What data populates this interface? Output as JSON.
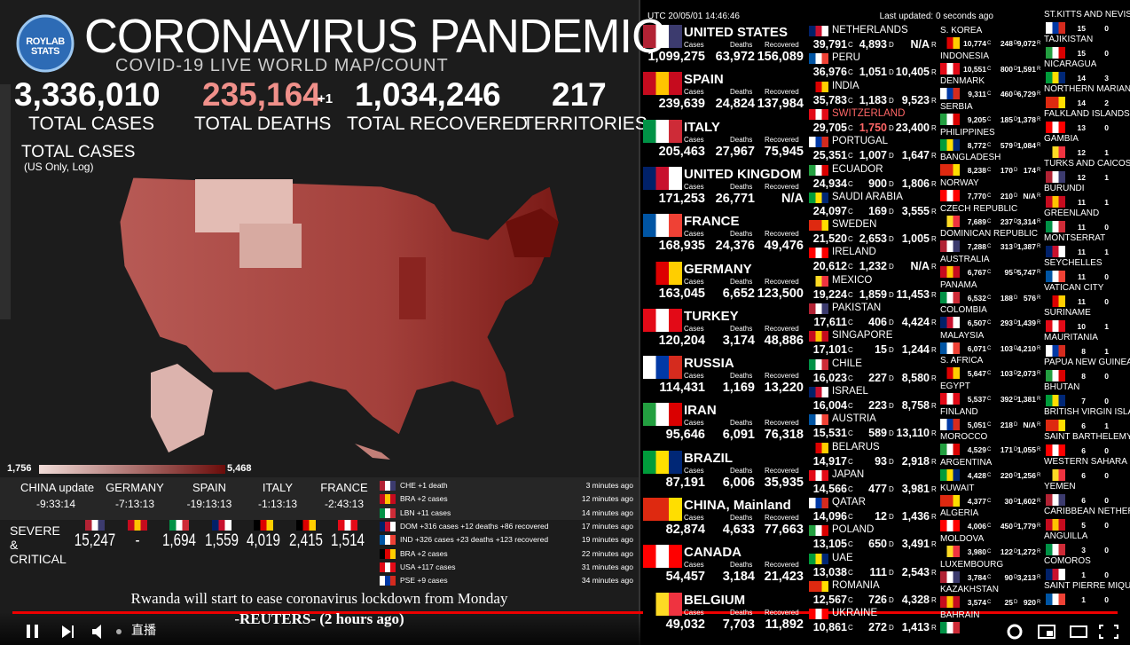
{
  "header": {
    "logo": "ROYLAB STATS",
    "title": "CORONAVIRUS PANDEMIC",
    "subtitle": "COVID-19 LIVE WORLD MAP/COUNT"
  },
  "stats": [
    {
      "value": "3,336,010",
      "label": "TOTAL CASES"
    },
    {
      "value": "235,164",
      "extra": "+1",
      "label": "TOTAL DEATHS"
    },
    {
      "value": "1,034,246",
      "label": "TOTAL RECOVERED"
    },
    {
      "value": "217",
      "label": "TERRITORIES"
    }
  ],
  "map": {
    "title": "TOTAL CASES",
    "note": "(US Only, Log)",
    "legend_min": "1,756",
    "legend_max": "5,468"
  },
  "updates": [
    {
      "country": "CHINA update",
      "time": "-9:33:14"
    },
    {
      "country": "GERMANY",
      "time": "-7:13:13"
    },
    {
      "country": "SPAIN",
      "time": "-19:13:13"
    },
    {
      "country": "ITALY",
      "time": "-1:13:13"
    },
    {
      "country": "FRANCE",
      "time": "-2:43:13"
    }
  ],
  "severe": {
    "label": "SEVERE & CRITICAL",
    "values": [
      "15,247",
      "-",
      "1,694",
      "1,559",
      "4,019",
      "2,415",
      "1,514"
    ]
  },
  "feed": [
    {
      "text": "CHE +1 death",
      "time": "3 minutes ago"
    },
    {
      "text": "BRA +2 cases",
      "time": "12 minutes ago"
    },
    {
      "text": "LBN +11 cases",
      "time": "14 minutes ago"
    },
    {
      "text": "DOM +316 cases +12 deaths +86 recovered",
      "time": "17 minutes ago"
    },
    {
      "text": "IND +326 cases +23 deaths +123 recovered",
      "time": "19 minutes ago"
    },
    {
      "text": "BRA +2 cases",
      "time": "22 minutes ago"
    },
    {
      "text": "USA +117 cases",
      "time": "31 minutes ago"
    },
    {
      "text": "PSE +9 cases",
      "time": "34 minutes ago"
    }
  ],
  "news": {
    "headline": "Rwanda will start to ease coronavirus lockdown from Monday",
    "source": "-REUTERS- (2 hours ago)"
  },
  "board": {
    "utc": "UTC 20/05/01 14:46:46",
    "updated": "Last updated: 0 seconds ago",
    "column_labels": [
      "Cases",
      "Deaths",
      "Recovered"
    ],
    "suffixes": [
      "C",
      "D",
      "R"
    ],
    "major": [
      [
        "UNITED STATES",
        "1,099,275",
        "63,972",
        "156,089"
      ],
      [
        "SPAIN",
        "239,639",
        "24,824",
        "137,984"
      ],
      [
        "ITALY",
        "205,463",
        "27,967",
        "75,945"
      ],
      [
        "UNITED KINGDOM",
        "171,253",
        "26,771",
        "N/A"
      ],
      [
        "FRANCE",
        "168,935",
        "24,376",
        "49,476"
      ],
      [
        "GERMANY",
        "163,045",
        "6,652",
        "123,500"
      ],
      [
        "TURKEY",
        "120,204",
        "3,174",
        "48,886"
      ],
      [
        "RUSSIA",
        "114,431",
        "1,169",
        "13,220"
      ],
      [
        "IRAN",
        "95,646",
        "6,091",
        "76,318"
      ],
      [
        "BRAZIL",
        "87,191",
        "6,006",
        "35,935"
      ],
      [
        "CHINA, Mainland",
        "82,874",
        "4,633",
        "77,663"
      ],
      [
        "CANADA",
        "54,457",
        "3,184",
        "21,423"
      ],
      [
        "BELGIUM",
        "49,032",
        "7,703",
        "11,892"
      ]
    ],
    "mid": [
      [
        "NETHERLANDS",
        "39,791",
        "4,893",
        "N/A"
      ],
      [
        "PERU",
        "36,976",
        "1,051",
        "10,405"
      ],
      [
        "INDIA",
        "35,783",
        "1,183",
        "9,523"
      ],
      [
        "SWITZERLAND",
        "29,705",
        "1,750",
        "23,400"
      ],
      [
        "PORTUGAL",
        "25,351",
        "1,007",
        "1,647"
      ],
      [
        "ECUADOR",
        "24,934",
        "900",
        "1,806"
      ],
      [
        "SAUDI ARABIA",
        "24,097",
        "169",
        "3,555"
      ],
      [
        "SWEDEN",
        "21,520",
        "2,653",
        "1,005"
      ],
      [
        "IRELAND",
        "20,612",
        "1,232",
        "N/A"
      ],
      [
        "MEXICO",
        "19,224",
        "1,859",
        "11,453"
      ],
      [
        "PAKISTAN",
        "17,611",
        "406",
        "4,424"
      ],
      [
        "SINGAPORE",
        "17,101",
        "15",
        "1,244"
      ],
      [
        "CHILE",
        "16,023",
        "227",
        "8,580"
      ],
      [
        "ISRAEL",
        "16,004",
        "223",
        "8,758"
      ],
      [
        "AUSTRIA",
        "15,531",
        "589",
        "13,110"
      ],
      [
        "BELARUS",
        "14,917",
        "93",
        "2,918"
      ],
      [
        "JAPAN",
        "14,566",
        "477",
        "3,981"
      ],
      [
        "QATAR",
        "14,096",
        "12",
        "1,436"
      ],
      [
        "POLAND",
        "13,105",
        "650",
        "3,491"
      ],
      [
        "UAE",
        "13,038",
        "111",
        "2,543"
      ],
      [
        "ROMANIA",
        "12,567",
        "726",
        "4,328"
      ],
      [
        "UKRAINE",
        "10,861",
        "272",
        "1,413"
      ]
    ],
    "minor": [
      [
        "S. KOREA",
        "10,774",
        "248",
        "9,072"
      ],
      [
        "INDONESIA",
        "10,551",
        "800",
        "1,591"
      ],
      [
        "DENMARK",
        "9,311",
        "460",
        "6,729"
      ],
      [
        "SERBIA",
        "9,205",
        "185",
        "1,378"
      ],
      [
        "PHILIPPINES",
        "8,772",
        "579",
        "1,084"
      ],
      [
        "BANGLADESH",
        "8,238",
        "170",
        "174"
      ],
      [
        "NORWAY",
        "7,770",
        "210",
        "N/A"
      ],
      [
        "CZECH REPUBLIC",
        "7,689",
        "237",
        "3,314"
      ],
      [
        "DOMINICAN REPUBLIC",
        "7,288",
        "313",
        "1,387"
      ],
      [
        "AUSTRALIA",
        "6,767",
        "95",
        "5,747"
      ],
      [
        "PANAMA",
        "6,532",
        "188",
        "576"
      ],
      [
        "COLOMBIA",
        "6,507",
        "293",
        "1,439"
      ],
      [
        "MALAYSIA",
        "6,071",
        "103",
        "4,210"
      ],
      [
        "S. AFRICA",
        "5,647",
        "103",
        "2,073"
      ],
      [
        "EGYPT",
        "5,537",
        "392",
        "1,381"
      ],
      [
        "FINLAND",
        "5,051",
        "218",
        "N/A"
      ],
      [
        "MOROCCO",
        "4,529",
        "171",
        "1,055"
      ],
      [
        "ARGENTINA",
        "4,428",
        "220",
        "1,256"
      ],
      [
        "KUWAIT",
        "4,377",
        "30",
        "1,602"
      ],
      [
        "ALGERIA",
        "4,006",
        "450",
        "1,779"
      ],
      [
        "MOLDOVA",
        "3,980",
        "122",
        "1,272"
      ],
      [
        "LUXEMBOURG",
        "3,784",
        "90",
        "3,213"
      ],
      [
        "KAZAKHSTAN",
        "3,574",
        "25",
        "920"
      ],
      [
        "BAHRAIN"
      ]
    ],
    "small": [
      [
        "ST.KITTS AND NEVIS",
        "15",
        "0"
      ],
      [
        "TAJIKISTAN",
        "15",
        "0"
      ],
      [
        "NICARAGUA",
        "14",
        "3"
      ],
      [
        "NORTHERN MARIANA",
        "14",
        "2"
      ],
      [
        "FALKLAND ISLANDS",
        "13",
        "0"
      ],
      [
        "GAMBIA",
        "12",
        "1"
      ],
      [
        "TURKS AND CAICOS",
        "12",
        "1"
      ],
      [
        "BURUNDI",
        "11",
        "1"
      ],
      [
        "GREENLAND",
        "11",
        "0"
      ],
      [
        "MONTSERRAT",
        "11",
        "1"
      ],
      [
        "SEYCHELLES",
        "11",
        "0"
      ],
      [
        "VATICAN CITY",
        "11",
        "0"
      ],
      [
        "SURINAME",
        "10",
        "1"
      ],
      [
        "MAURITANIA",
        "8",
        "1"
      ],
      [
        "PAPUA NEW GUINEA",
        "8",
        "0"
      ],
      [
        "BHUTAN",
        "7",
        "0"
      ],
      [
        "BRITISH VIRGIN ISLAN",
        "6",
        "1"
      ],
      [
        "SAINT BARTHELEMY",
        "6",
        "0"
      ],
      [
        "WESTERN SAHARA",
        "6",
        "0"
      ],
      [
        "YEMEN",
        "6",
        "0"
      ],
      [
        "CARIBBEAN NETHERL",
        "5",
        "0"
      ],
      [
        "ANGUILLA",
        "3",
        "0"
      ],
      [
        "COMOROS",
        "1",
        "0"
      ],
      [
        "SAINT PIERRE MIQUEL",
        "1",
        "0"
      ]
    ]
  },
  "player": {
    "live": "直播"
  }
}
